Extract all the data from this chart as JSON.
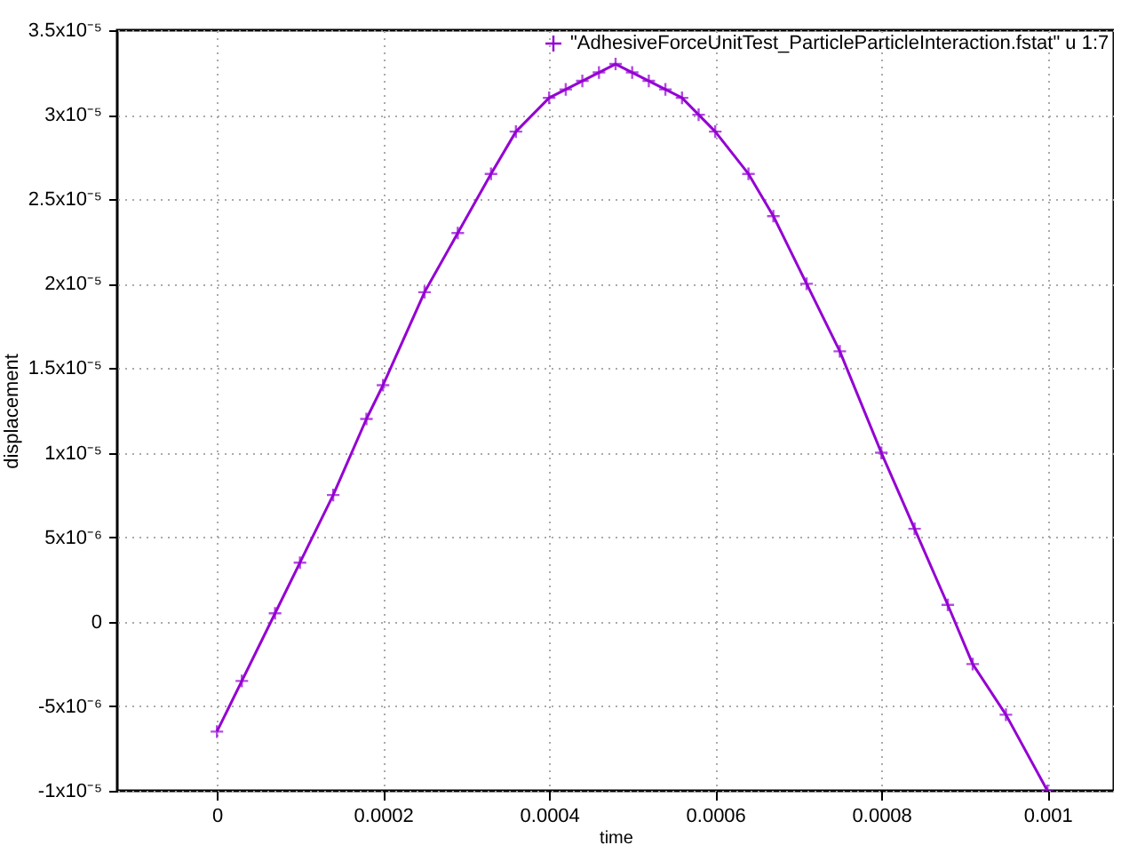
{
  "chart_data": {
    "type": "line",
    "xlabel": "time",
    "ylabel": "displacement",
    "x": [
      0,
      3e-05,
      7e-05,
      0.0001,
      0.00014,
      0.00018,
      0.0002,
      0.00025,
      0.00029,
      0.00033,
      0.00036,
      0.0004,
      0.00042,
      0.00044,
      0.00046,
      0.00048,
      0.0005,
      0.00052,
      0.00054,
      0.00056,
      0.00058,
      0.0006,
      0.00064,
      0.00067,
      0.00071,
      0.00075,
      0.0008,
      0.00084,
      0.00088,
      0.00091,
      0.00095,
      0.001
    ],
    "series": [
      {
        "name": "\"AdhesiveForceUnitTest_ParticleParticleInteraction.fstat\" u 1:7",
        "color": "#9400d3",
        "values": [
          -6.5e-06,
          -3.5e-06,
          5e-07,
          3.5e-06,
          7.5e-06,
          1.2e-05,
          1.4e-05,
          1.95e-05,
          2.3e-05,
          2.65e-05,
          2.9e-05,
          3.1e-05,
          3.15e-05,
          3.2e-05,
          3.25e-05,
          3.3e-05,
          3.25e-05,
          3.2e-05,
          3.15e-05,
          3.1e-05,
          3e-05,
          2.9e-05,
          2.65e-05,
          2.4e-05,
          2e-05,
          1.6e-05,
          1e-05,
          5.5e-06,
          1e-06,
          -2.5e-06,
          -5.5e-06,
          -1e-05
        ]
      }
    ],
    "xlim": [
      -0.00012,
      0.00108
    ],
    "ylim": [
      -1e-05,
      3.5e-05
    ],
    "xticks": [
      0,
      0.0002,
      0.0004,
      0.0006,
      0.0008,
      0.001
    ],
    "yticks": [
      {
        "value": -1e-05,
        "label": "-1x10⁻⁵"
      },
      {
        "value": -5e-06,
        "label": "-5x10⁻⁶"
      },
      0,
      {
        "value": 5e-06,
        "label": "5x10⁻⁶"
      },
      {
        "value": 1e-05,
        "label": "1x10⁻⁵"
      },
      {
        "value": 1.5e-05,
        "label": "1.5x10⁻⁵"
      },
      {
        "value": 2e-05,
        "label": "2x10⁻⁵"
      },
      {
        "value": 2.5e-05,
        "label": "2.5x10⁻⁵"
      },
      {
        "value": 3e-05,
        "label": "3x10⁻⁵"
      },
      {
        "value": 3.5e-05,
        "label": "3.5x10⁻⁵"
      }
    ],
    "grid": true,
    "legend": "top right",
    "marker": "cross",
    "line_style": "solid"
  }
}
